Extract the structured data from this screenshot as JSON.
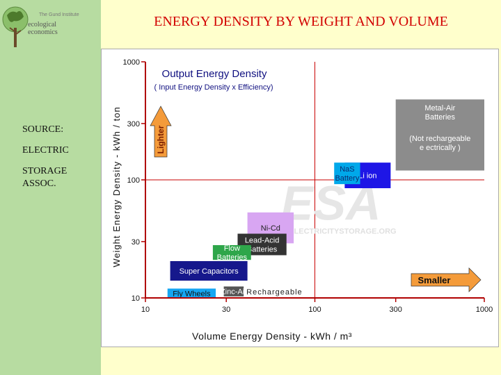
{
  "title": "ENERGY DENSITY BY WEIGHT AND VOLUME",
  "sidebar": {
    "logo": {
      "line1": "The Gund Institute",
      "line2": "ecological",
      "line3": "economics"
    },
    "source": [
      "SOURCE:",
      "ELECTRIC",
      "STORAGE",
      "ASSOC."
    ]
  },
  "colors": {
    "axis": "#b00000",
    "grid": "#c80000",
    "lighter_arrow": "#f49b3a",
    "smaller_arrow": "#f49b3a"
  },
  "chart_data": {
    "type": "scatter",
    "xlabel": "Volume Energy Density  -  kWh / m³",
    "ylabel": "Weight Energy Density  -  kWh / ton",
    "x_scale": "log",
    "y_scale": "log",
    "xlim": [
      10,
      1000
    ],
    "ylim": [
      10,
      1000
    ],
    "x_ticks": [
      10,
      30,
      100,
      300,
      1000
    ],
    "y_ticks": [
      10,
      30,
      100,
      300,
      1000
    ],
    "x_tick_labels": [
      "10",
      "30",
      "100",
      "300",
      "1000"
    ],
    "y_tick_labels": [
      "10",
      "30",
      "100",
      "300",
      "1000"
    ],
    "gridlines": {
      "x": [
        100
      ],
      "y": [
        100
      ]
    },
    "heading": "Output Energy Density",
    "subheading": "( Input Energy Density x Efficiency)",
    "lighter_label": "Lighter",
    "smaller_label": "Smaller",
    "rechargeable_label": "Rechargeable",
    "watermark": "ESA",
    "watermark_url": "WWW.ELECTRICITYSTORAGE.ORG",
    "regions": [
      {
        "name": "Metal-Air Batteries",
        "label": [
          "Metal-Air",
          "Batteries"
        ],
        "note": [
          "(Not rechargeable",
          "e ectrically )"
        ],
        "x": [
          300,
          1000
        ],
        "y": [
          120,
          480
        ],
        "fill": "#8c8c8c",
        "text": "#ffffff"
      },
      {
        "name": "Li ion",
        "label": [
          "Li ion"
        ],
        "x": [
          150,
          280
        ],
        "y": [
          85,
          140
        ],
        "fill": "#1e16e6",
        "text": "#ffffff"
      },
      {
        "name": "NaS Battery",
        "label": [
          "NaS",
          "Battery"
        ],
        "x": [
          130,
          185
        ],
        "y": [
          92,
          140
        ],
        "fill": "#00a8ea",
        "text": "#0b2a70"
      },
      {
        "name": "Ni-Cd",
        "label": [
          "Ni-Cd"
        ],
        "x": [
          40,
          75
        ],
        "y": [
          29,
          53
        ],
        "fill": "#d8a6f2",
        "text": "#222222"
      },
      {
        "name": "Lead-Acid Batteries",
        "label": [
          "Lead-Acid",
          "Batteries"
        ],
        "x": [
          35,
          68
        ],
        "y": [
          23,
          35
        ],
        "fill": "#333333",
        "text": "#ffffff"
      },
      {
        "name": "Flow Batteries",
        "label": [
          "Flow",
          "Batteries"
        ],
        "x": [
          25,
          42
        ],
        "y": [
          21,
          28
        ],
        "fill": "#2ea64a",
        "text": "#ffffff"
      },
      {
        "name": "Super Capacitors",
        "label": [
          "Super Capacitors"
        ],
        "x": [
          14,
          40
        ],
        "y": [
          14,
          20.5
        ],
        "fill": "#16188c",
        "text": "#ffffff"
      },
      {
        "name": "Zinc-Air",
        "label": [
          "Zinc-Air"
        ],
        "x": [
          29,
          38
        ],
        "y": [
          10.3,
          12.5
        ],
        "fill": "#555555",
        "text": "#ffffff"
      },
      {
        "name": "Fly Wheels",
        "label": [
          "Fly Wheels"
        ],
        "x": [
          13.5,
          26
        ],
        "y": [
          10,
          12
        ],
        "fill": "#16a6f2",
        "text": "#111111"
      }
    ]
  }
}
